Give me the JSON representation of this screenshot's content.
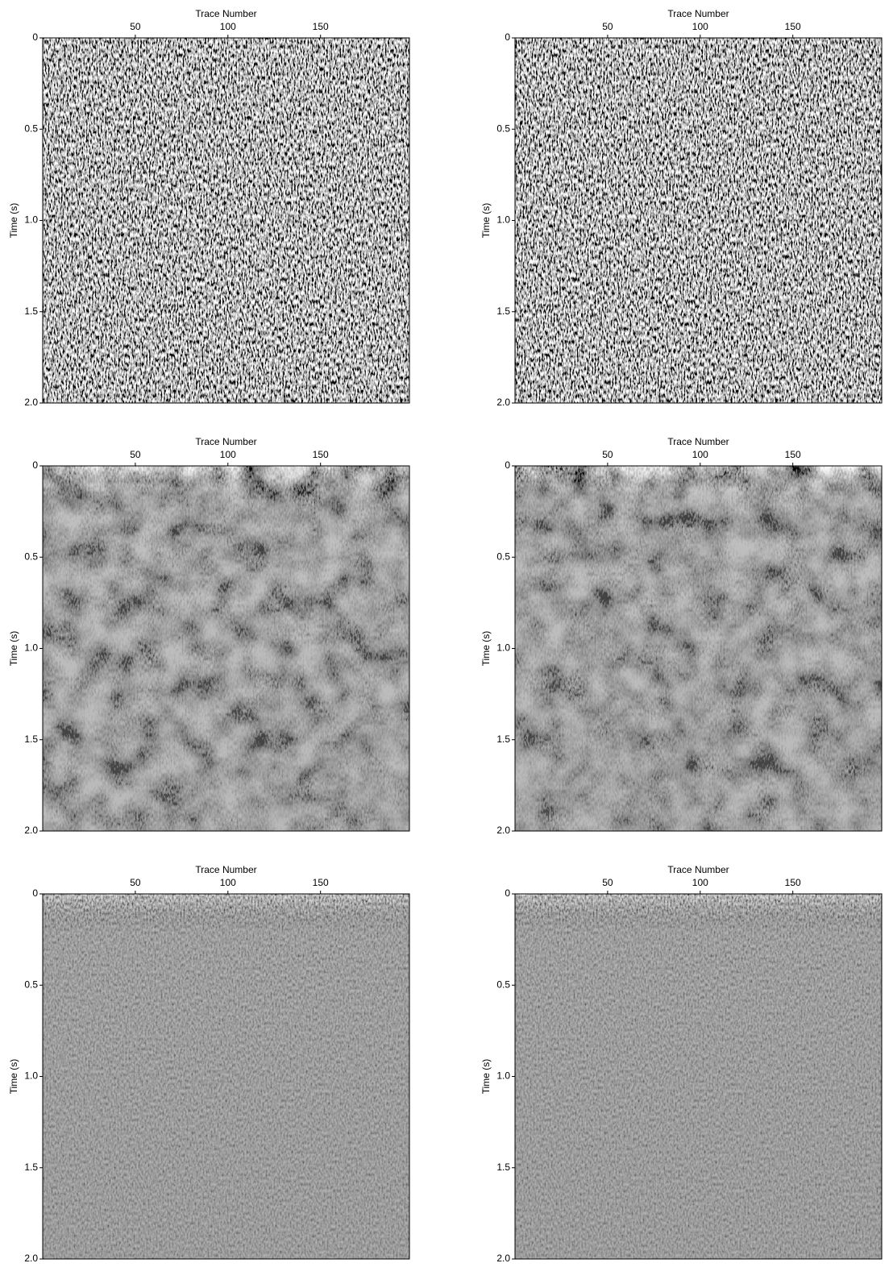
{
  "chart_data": [
    {
      "type": "seismic",
      "x_label": "Trace Number",
      "y_label": "Time (s)",
      "xlim": [
        0,
        198
      ],
      "ylim": [
        0,
        2
      ],
      "y_inverted": true,
      "xticks": [
        50,
        100,
        150
      ],
      "yticks": [
        0,
        0.5,
        {
          "value": 1,
          "label": "1.0"
        },
        1.5,
        {
          "value": 2,
          "label": "2.0"
        }
      ]
    },
    {
      "type": "seismic",
      "x_label": "Trace Number",
      "y_label": "Time (s)",
      "xlim": [
        0,
        198
      ],
      "ylim": [
        0,
        2
      ],
      "y_inverted": true,
      "xticks": [
        50,
        100,
        150
      ],
      "yticks": [
        0,
        0.5,
        {
          "value": 1,
          "label": "1.0"
        },
        1.5,
        {
          "value": 2,
          "label": "2.0"
        }
      ]
    },
    {
      "type": "seismic",
      "x_label": "Trace Number",
      "y_label": "Time (s)",
      "xlim": [
        0,
        198
      ],
      "ylim": [
        0,
        2
      ],
      "y_inverted": true,
      "xticks": [
        50,
        100,
        150
      ],
      "yticks": [
        0,
        0.5,
        {
          "value": 1,
          "label": "1.0"
        },
        1.5,
        {
          "value": 2,
          "label": "2.0"
        }
      ]
    },
    {
      "type": "seismic",
      "x_label": "Trace Number",
      "y_label": "Time (s)",
      "xlim": [
        0,
        198
      ],
      "ylim": [
        0,
        2
      ],
      "y_inverted": true,
      "xticks": [
        50,
        100,
        150
      ],
      "yticks": [
        0,
        0.5,
        {
          "value": 1,
          "label": "1.0"
        },
        1.5,
        {
          "value": 2,
          "label": "2.0"
        }
      ]
    },
    {
      "type": "seismic",
      "x_label": "Trace Number",
      "y_label": "Time (s)",
      "xlim": [
        0,
        198
      ],
      "ylim": [
        0,
        2
      ],
      "y_inverted": true,
      "xticks": [
        50,
        100,
        150
      ],
      "yticks": [
        0,
        0.5,
        {
          "value": 1,
          "label": "1.0"
        },
        1.5,
        {
          "value": 2,
          "label": "2.0"
        }
      ]
    },
    {
      "type": "seismic",
      "x_label": "Trace Number",
      "y_label": "Time (s)",
      "xlim": [
        0,
        198
      ],
      "ylim": [
        0,
        2
      ],
      "y_inverted": true,
      "xticks": [
        50,
        100,
        150
      ],
      "yticks": [
        0,
        0.5,
        {
          "value": 1,
          "label": "1.0"
        },
        1.5,
        {
          "value": 2,
          "label": "2.0"
        }
      ]
    }
  ]
}
